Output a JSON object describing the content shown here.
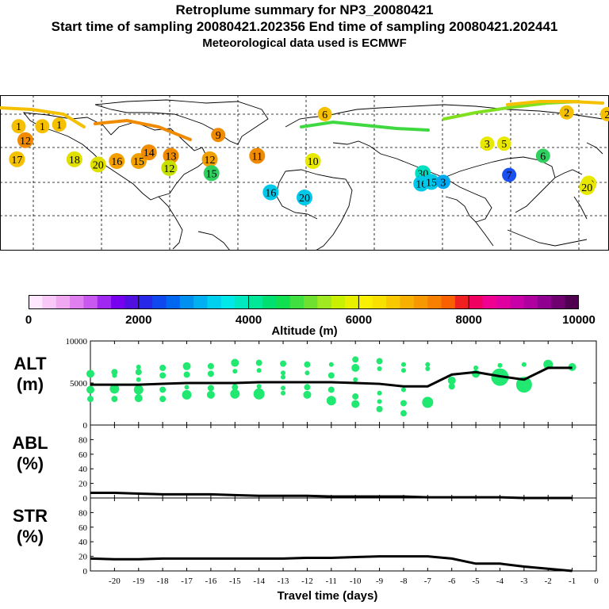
{
  "header": {
    "title": "Retroplume summary for NP3_20080421",
    "sampling": "Start time of sampling 20080421.202356     End time of sampling 20080421.202441",
    "met": "Meteorological data used is ECMWF"
  },
  "map": {
    "plume_labels": [
      {
        "text": "1",
        "lon": -169,
        "lat": 68,
        "color": "#f5c000"
      },
      {
        "text": "1",
        "lon": -155,
        "lat": 68,
        "color": "#f5c000"
      },
      {
        "text": "1",
        "lon": -145,
        "lat": 69,
        "color": "#f5c000"
      },
      {
        "text": "12",
        "lon": -165,
        "lat": 60,
        "color": "#f08a00"
      },
      {
        "text": "17",
        "lon": -170,
        "lat": 49,
        "color": "#f5c000"
      },
      {
        "text": "18",
        "lon": -136,
        "lat": 49,
        "color": "#e0e000"
      },
      {
        "text": "20",
        "lon": -122,
        "lat": 46,
        "color": "#e0e000"
      },
      {
        "text": "16",
        "lon": -111,
        "lat": 48,
        "color": "#f5a000"
      },
      {
        "text": "15",
        "lon": -98,
        "lat": 48,
        "color": "#f0a000"
      },
      {
        "text": "14",
        "lon": -92,
        "lat": 53,
        "color": "#f08a00"
      },
      {
        "text": "13",
        "lon": -79,
        "lat": 51,
        "color": "#f08a00"
      },
      {
        "text": "12",
        "lon": -56,
        "lat": 49,
        "color": "#f0a000"
      },
      {
        "text": "12",
        "lon": -80,
        "lat": 44,
        "color": "#c8e000"
      },
      {
        "text": "15",
        "lon": -55,
        "lat": 41,
        "color": "#30d060"
      },
      {
        "text": "9",
        "lon": -51,
        "lat": 63,
        "color": "#f08a00"
      },
      {
        "text": "11",
        "lon": -28,
        "lat": 51,
        "color": "#f08a00"
      },
      {
        "text": "6",
        "lon": 12,
        "lat": 75,
        "color": "#f5c000"
      },
      {
        "text": "10",
        "lon": 5,
        "lat": 48,
        "color": "#e8e800"
      },
      {
        "text": "20",
        "lon": 0,
        "lat": 27,
        "color": "#00c8e8"
      },
      {
        "text": "16",
        "lon": -20,
        "lat": 30,
        "color": "#00c8e8"
      },
      {
        "text": "30",
        "lon": 70,
        "lat": 41,
        "color": "#00e0c0"
      },
      {
        "text": "16",
        "lon": 69,
        "lat": 35,
        "color": "#00c8e8"
      },
      {
        "text": "15",
        "lon": 75,
        "lat": 36,
        "color": "#00c8e8"
      },
      {
        "text": "3",
        "lon": 82,
        "lat": 36,
        "color": "#00a8f0"
      },
      {
        "text": "3",
        "lon": 108,
        "lat": 58,
        "color": "#e8e800"
      },
      {
        "text": "5",
        "lon": 118,
        "lat": 58,
        "color": "#e8e800"
      },
      {
        "text": "7",
        "lon": 121,
        "lat": 40,
        "color": "#1a50f0"
      },
      {
        "text": "6",
        "lon": 141,
        "lat": 51,
        "color": "#30d060"
      },
      {
        "text": "2",
        "lon": 179,
        "lat": 75,
        "color": "#f5c000"
      },
      {
        "text": "2",
        "lon": 155,
        "lat": 76,
        "color": "#f5c000"
      },
      {
        "text": "19",
        "lon": 168,
        "lat": 35,
        "color": "#e8e800"
      },
      {
        "text": "20",
        "lon": 167,
        "lat": 33,
        "color": "#e8e800"
      }
    ]
  },
  "colorbar": {
    "ticks": [
      "0",
      "2000",
      "4000",
      "6000",
      "8000",
      "10000"
    ],
    "label": "Altitude (m)",
    "colors": [
      "#ffe8ff",
      "#f8c8f8",
      "#f0a8f0",
      "#e080f0",
      "#c858f0",
      "#a028f0",
      "#7800f0",
      "#5010e0",
      "#2828e8",
      "#1048f0",
      "#0068f0",
      "#0090f0",
      "#00b0f0",
      "#00d0f0",
      "#00e8e8",
      "#00e8c0",
      "#00e898",
      "#00e070",
      "#10e050",
      "#40e040",
      "#70e030",
      "#a0e820",
      "#c8f000",
      "#e8f000",
      "#f8f000",
      "#f8e000",
      "#f8c800",
      "#f8b000",
      "#f89800",
      "#f88000",
      "#f86000",
      "#f02020",
      "#f00060",
      "#f00090",
      "#e000a0",
      "#c800a8",
      "#b000a0",
      "#900090",
      "#700070",
      "#500050"
    ]
  },
  "chart_data": [
    {
      "type": "scatter",
      "label": "ALT\n(m)",
      "label_lines": [
        "ALT",
        "(m)"
      ],
      "xlim": [
        -21,
        0
      ],
      "ylim": [
        0,
        10000
      ],
      "ytick_labels": [
        "0",
        "5000",
        "10000"
      ],
      "line_x": [
        -21,
        -20,
        -19,
        -18,
        -17,
        -16,
        -15,
        -14,
        -13,
        -12,
        -11,
        -10,
        -9,
        -8,
        -7,
        -6,
        -5,
        -4,
        -3,
        -2,
        -1
      ],
      "line_y": [
        4800,
        4800,
        4800,
        4900,
        5000,
        5000,
        5000,
        5100,
        5100,
        5100,
        5100,
        5000,
        4900,
        4600,
        4600,
        6000,
        6300,
        5800,
        5400,
        6800,
        6800
      ],
      "points": [
        {
          "x": -21,
          "y": 6100,
          "s": 5
        },
        {
          "x": -21,
          "y": 4200,
          "s": 5
        },
        {
          "x": -21,
          "y": 3100,
          "s": 4
        },
        {
          "x": -20,
          "y": 6300,
          "s": 4
        },
        {
          "x": -20,
          "y": 5900,
          "s": 3
        },
        {
          "x": -20,
          "y": 4300,
          "s": 6
        },
        {
          "x": -20,
          "y": 3100,
          "s": 4
        },
        {
          "x": -19,
          "y": 6900,
          "s": 3
        },
        {
          "x": -19,
          "y": 6300,
          "s": 4
        },
        {
          "x": -19,
          "y": 5400,
          "s": 3
        },
        {
          "x": -19,
          "y": 4200,
          "s": 6
        },
        {
          "x": -19,
          "y": 3200,
          "s": 5
        },
        {
          "x": -18,
          "y": 6800,
          "s": 4
        },
        {
          "x": -18,
          "y": 5900,
          "s": 4
        },
        {
          "x": -18,
          "y": 4200,
          "s": 4
        },
        {
          "x": -18,
          "y": 3100,
          "s": 4
        },
        {
          "x": -17,
          "y": 7000,
          "s": 5
        },
        {
          "x": -17,
          "y": 6000,
          "s": 4
        },
        {
          "x": -17,
          "y": 4500,
          "s": 3
        },
        {
          "x": -17,
          "y": 3600,
          "s": 6
        },
        {
          "x": -16,
          "y": 7000,
          "s": 4
        },
        {
          "x": -16,
          "y": 6100,
          "s": 4
        },
        {
          "x": -16,
          "y": 4400,
          "s": 4
        },
        {
          "x": -16,
          "y": 3600,
          "s": 5
        },
        {
          "x": -15,
          "y": 7400,
          "s": 5
        },
        {
          "x": -15,
          "y": 6400,
          "s": 3
        },
        {
          "x": -15,
          "y": 4500,
          "s": 4
        },
        {
          "x": -15,
          "y": 3700,
          "s": 6
        },
        {
          "x": -14,
          "y": 7400,
          "s": 4
        },
        {
          "x": -14,
          "y": 6500,
          "s": 3
        },
        {
          "x": -14,
          "y": 4600,
          "s": 3
        },
        {
          "x": -14,
          "y": 3700,
          "s": 7
        },
        {
          "x": -13,
          "y": 7300,
          "s": 4
        },
        {
          "x": -13,
          "y": 6200,
          "s": 3
        },
        {
          "x": -13,
          "y": 5700,
          "s": 3
        },
        {
          "x": -13,
          "y": 4400,
          "s": 3
        },
        {
          "x": -13,
          "y": 3800,
          "s": 3
        },
        {
          "x": -12,
          "y": 7200,
          "s": 4
        },
        {
          "x": -12,
          "y": 6200,
          "s": 3
        },
        {
          "x": -12,
          "y": 4500,
          "s": 4
        },
        {
          "x": -12,
          "y": 3600,
          "s": 5
        },
        {
          "x": -11,
          "y": 7200,
          "s": 3
        },
        {
          "x": -11,
          "y": 5900,
          "s": 4
        },
        {
          "x": -11,
          "y": 4200,
          "s": 4
        },
        {
          "x": -11,
          "y": 2900,
          "s": 6
        },
        {
          "x": -10,
          "y": 7800,
          "s": 4
        },
        {
          "x": -10,
          "y": 6800,
          "s": 5
        },
        {
          "x": -10,
          "y": 5400,
          "s": 3
        },
        {
          "x": -10,
          "y": 3400,
          "s": 4
        },
        {
          "x": -10,
          "y": 2500,
          "s": 5
        },
        {
          "x": -9,
          "y": 7600,
          "s": 4
        },
        {
          "x": -9,
          "y": 6700,
          "s": 3
        },
        {
          "x": -9,
          "y": 3800,
          "s": 3
        },
        {
          "x": -9,
          "y": 2800,
          "s": 3
        },
        {
          "x": -9,
          "y": 1900,
          "s": 4
        },
        {
          "x": -8,
          "y": 7200,
          "s": 3
        },
        {
          "x": -8,
          "y": 6500,
          "s": 3
        },
        {
          "x": -8,
          "y": 4200,
          "s": 3
        },
        {
          "x": -8,
          "y": 2600,
          "s": 4
        },
        {
          "x": -8,
          "y": 1400,
          "s": 4
        },
        {
          "x": -7,
          "y": 7200,
          "s": 3
        },
        {
          "x": -7,
          "y": 6700,
          "s": 3
        },
        {
          "x": -7,
          "y": 2700,
          "s": 7
        },
        {
          "x": -6,
          "y": 5300,
          "s": 5
        },
        {
          "x": -6,
          "y": 4600,
          "s": 4
        },
        {
          "x": -5,
          "y": 6800,
          "s": 3
        },
        {
          "x": -5,
          "y": 6100,
          "s": 5
        },
        {
          "x": -4,
          "y": 7100,
          "s": 3
        },
        {
          "x": -4,
          "y": 5700,
          "s": 11
        },
        {
          "x": -3,
          "y": 7200,
          "s": 3
        },
        {
          "x": -3,
          "y": 4800,
          "s": 10
        },
        {
          "x": -2,
          "y": 7200,
          "s": 6
        },
        {
          "x": -1,
          "y": 6900,
          "s": 5
        }
      ]
    },
    {
      "type": "line",
      "label_lines": [
        "ABL",
        "(%)"
      ],
      "xlim": [
        -21,
        0
      ],
      "ylim": [
        0,
        100
      ],
      "ytick_labels": [
        "0",
        "20",
        "40",
        "60",
        "80"
      ],
      "x": [
        -21,
        -20,
        -19,
        -18,
        -17,
        -16,
        -15,
        -14,
        -13,
        -12,
        -11,
        -10,
        -9,
        -8,
        -7,
        -6,
        -5,
        -4,
        -3,
        -2,
        -1
      ],
      "y": [
        7,
        7,
        6,
        5,
        5,
        5,
        4,
        3,
        3,
        3,
        2,
        2,
        2,
        2,
        1,
        1,
        1,
        1,
        0,
        0,
        0
      ]
    },
    {
      "type": "line",
      "label_lines": [
        "STR",
        "(%)"
      ],
      "xlim": [
        -21,
        0
      ],
      "ylim": [
        0,
        100
      ],
      "ytick_labels": [
        "0",
        "20",
        "40",
        "60",
        "80"
      ],
      "x": [
        -21,
        -20,
        -19,
        -18,
        -17,
        -16,
        -15,
        -14,
        -13,
        -12,
        -11,
        -10,
        -9,
        -8,
        -7,
        -6,
        -5,
        -4,
        -3,
        -2,
        -1
      ],
      "y": [
        17,
        16,
        16,
        17,
        17,
        17,
        17,
        17,
        17,
        18,
        18,
        19,
        20,
        20,
        20,
        17,
        10,
        10,
        6,
        3,
        0
      ],
      "xtick_labels": [
        "-20",
        "-19",
        "-18",
        "-17",
        "-16",
        "-15",
        "-14",
        "-13",
        "-12",
        "-11",
        "-10",
        "-9",
        "-8",
        "-7",
        "-6",
        "-5",
        "-4",
        "-3",
        "-2",
        "-1",
        "0"
      ],
      "xlabel": "Travel time (days)"
    }
  ]
}
